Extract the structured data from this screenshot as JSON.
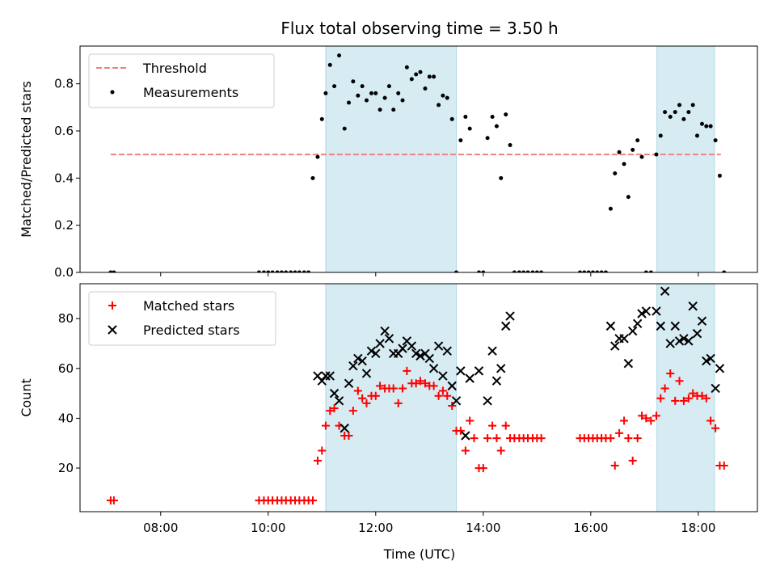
{
  "chart_data": {
    "type": "scatter",
    "title": "Flux total observing time = 3.50 h",
    "xlabel": "Time (UTC)",
    "x_ticks": [
      "08:00",
      "10:00",
      "12:00",
      "14:00",
      "16:00",
      "18:00"
    ],
    "x_tick_hours": [
      8,
      10,
      12,
      14,
      16,
      18
    ],
    "xlim_hours": [
      6.5,
      19.1
    ],
    "highlight_bands_hours": [
      [
        11.07,
        13.5
      ],
      [
        17.23,
        18.3
      ]
    ],
    "highlight_color": "#add8e6",
    "panels": [
      {
        "ylabel": "Matched/Predicted stars",
        "ylim": [
          0,
          0.96
        ],
        "y_ticks": [
          "0.0",
          "0.2",
          "0.4",
          "0.6",
          "0.8"
        ],
        "y_tick_values": [
          0,
          0.2,
          0.4,
          0.6,
          0.8
        ],
        "legend": [
          "Threshold",
          "Measurements"
        ],
        "threshold": {
          "name": "Threshold",
          "value": 0.5,
          "x_range_hours": [
            7.07,
            18.42
          ],
          "color": "#f08080",
          "style": "dashed"
        },
        "series": [
          {
            "name": "Measurements",
            "marker": "dot",
            "color": "#000000",
            "x_hours": [
              7.07,
              7.13,
              9.83,
              9.92,
              10.0,
              10.08,
              10.17,
              10.25,
              10.33,
              10.42,
              10.5,
              10.58,
              10.67,
              10.75,
              10.83,
              10.92,
              11.0,
              11.07,
              11.15,
              11.23,
              11.32,
              11.42,
              11.5,
              11.58,
              11.67,
              11.75,
              11.83,
              11.92,
              12.0,
              12.08,
              12.17,
              12.25,
              12.33,
              12.42,
              12.5,
              12.58,
              12.67,
              12.75,
              12.83,
              12.92,
              13.0,
              13.08,
              13.17,
              13.25,
              13.33,
              13.42,
              13.5,
              13.58,
              13.67,
              13.75,
              13.92,
              14.0,
              14.08,
              14.17,
              14.25,
              14.33,
              14.42,
              14.5,
              14.58,
              14.67,
              14.75,
              14.83,
              14.92,
              15.0,
              15.08,
              15.8,
              15.88,
              15.96,
              16.04,
              16.12,
              16.2,
              16.28,
              16.37,
              16.45,
              16.53,
              16.62,
              16.7,
              16.78,
              16.87,
              16.95,
              17.03,
              17.12,
              17.22,
              17.3,
              17.38,
              17.48,
              17.57,
              17.65,
              17.73,
              17.82,
              17.9,
              17.98,
              18.07,
              18.15,
              18.23,
              18.32,
              18.4,
              18.48
            ],
            "y": [
              0,
              0,
              0,
              0,
              0,
              0,
              0,
              0,
              0,
              0,
              0,
              0,
              0,
              0,
              0.4,
              0.49,
              0.65,
              0.76,
              0.88,
              0.79,
              0.92,
              0.61,
              0.72,
              0.81,
              0.75,
              0.79,
              0.73,
              0.76,
              0.76,
              0.69,
              0.74,
              0.79,
              0.69,
              0.76,
              0.73,
              0.87,
              0.82,
              0.84,
              0.85,
              0.78,
              0.83,
              0.83,
              0.71,
              0.75,
              0.74,
              0.65,
              0,
              0.56,
              0.66,
              0.61,
              0,
              0,
              0.57,
              0.66,
              0.62,
              0.4,
              0.67,
              0.54,
              0,
              0,
              0,
              0,
              0,
              0,
              0,
              0,
              0,
              0,
              0,
              0,
              0,
              0,
              0.27,
              0.42,
              0.51,
              0.46,
              0.32,
              0.52,
              0.56,
              0.49,
              0,
              0,
              0.5,
              0.58,
              0.68,
              0.66,
              0.68,
              0.71,
              0.65,
              0.68,
              0.71,
              0.58,
              0.63,
              0.62,
              0.62,
              0.56,
              0.41,
              0
            ]
          }
        ]
      },
      {
        "ylabel": "Count",
        "ylim": [
          2.5,
          94
        ],
        "y_ticks": [
          "20",
          "40",
          "60",
          "80"
        ],
        "y_tick_values": [
          20,
          40,
          60,
          80
        ],
        "legend": [
          "Matched stars",
          "Predicted stars"
        ],
        "series": [
          {
            "name": "Matched stars",
            "marker": "plus",
            "color": "#ff0000",
            "x_hours": [
              7.07,
              7.13,
              9.83,
              9.92,
              10.0,
              10.08,
              10.17,
              10.25,
              10.33,
              10.42,
              10.5,
              10.58,
              10.67,
              10.75,
              10.83,
              10.92,
              11.0,
              11.07,
              11.15,
              11.23,
              11.32,
              11.42,
              11.5,
              11.58,
              11.67,
              11.75,
              11.83,
              11.92,
              12.0,
              12.08,
              12.17,
              12.25,
              12.33,
              12.42,
              12.5,
              12.58,
              12.67,
              12.75,
              12.83,
              12.92,
              13.0,
              13.08,
              13.17,
              13.25,
              13.33,
              13.42,
              13.5,
              13.58,
              13.67,
              13.75,
              13.83,
              13.92,
              14.0,
              14.08,
              14.17,
              14.25,
              14.33,
              14.42,
              14.5,
              14.58,
              14.67,
              14.75,
              14.83,
              14.92,
              15.0,
              15.08,
              15.8,
              15.88,
              15.96,
              16.04,
              16.12,
              16.2,
              16.28,
              16.37,
              16.45,
              16.53,
              16.62,
              16.7,
              16.78,
              16.87,
              16.95,
              17.03,
              17.12,
              17.22,
              17.3,
              17.38,
              17.48,
              17.57,
              17.65,
              17.73,
              17.82,
              17.9,
              17.98,
              18.07,
              18.15,
              18.23,
              18.32,
              18.4,
              18.48
            ],
            "y": [
              7,
              7,
              7,
              7,
              7,
              7,
              7,
              7,
              7,
              7,
              7,
              7,
              7,
              7,
              7,
              23,
              27,
              37,
              43,
              44,
              37,
              33,
              33,
              43,
              51,
              48,
              46,
              49,
              49,
              53,
              52,
              52,
              52,
              46,
              52,
              59,
              54,
              54,
              55,
              54,
              53,
              53,
              49,
              51,
              49,
              45,
              35,
              35,
              27,
              39,
              32,
              20,
              20,
              32,
              37,
              32,
              27,
              37,
              32,
              32,
              32,
              32,
              32,
              32,
              32,
              32,
              32,
              32,
              32,
              32,
              32,
              32,
              32,
              32,
              21,
              34,
              39,
              32,
              23,
              32,
              41,
              40,
              39,
              41,
              48,
              52,
              58,
              47,
              55,
              47,
              48,
              50,
              49,
              49,
              48,
              39,
              36,
              21,
              21
            ]
          },
          {
            "name": "Predicted stars",
            "marker": "x",
            "color": "#000000",
            "x_hours": [
              10.92,
              11.0,
              11.07,
              11.15,
              11.23,
              11.32,
              11.42,
              11.5,
              11.58,
              11.67,
              11.75,
              11.83,
              11.92,
              12.0,
              12.08,
              12.17,
              12.25,
              12.33,
              12.42,
              12.5,
              12.58,
              12.67,
              12.75,
              12.83,
              12.92,
              13.0,
              13.08,
              13.17,
              13.25,
              13.33,
              13.42,
              13.5,
              13.58,
              13.67,
              13.75,
              13.92,
              14.08,
              14.17,
              14.25,
              14.33,
              14.42,
              14.5,
              16.37,
              16.45,
              16.53,
              16.62,
              16.7,
              16.78,
              16.87,
              16.95,
              17.03,
              17.22,
              17.3,
              17.38,
              17.48,
              17.57,
              17.65,
              17.73,
              17.82,
              17.9,
              17.98,
              18.07,
              18.15,
              18.23,
              18.32,
              18.4
            ],
            "y": [
              57,
              55,
              57,
              57,
              50,
              47,
              36,
              54,
              61,
              64,
              63,
              58,
              67,
              66,
              70,
              75,
              72,
              66,
              66,
              68,
              71,
              69,
              66,
              65,
              66,
              64,
              60,
              69,
              57,
              67,
              53,
              47,
              59,
              33,
              56,
              59,
              47,
              67,
              55,
              60,
              77,
              81,
              77,
              69,
              72,
              72,
              62,
              75,
              78,
              82,
              83,
              83,
              77,
              91,
              70,
              77,
              71,
              72,
              71,
              85,
              74,
              79,
              63,
              64,
              52,
              60
            ]
          }
        ]
      }
    ]
  }
}
